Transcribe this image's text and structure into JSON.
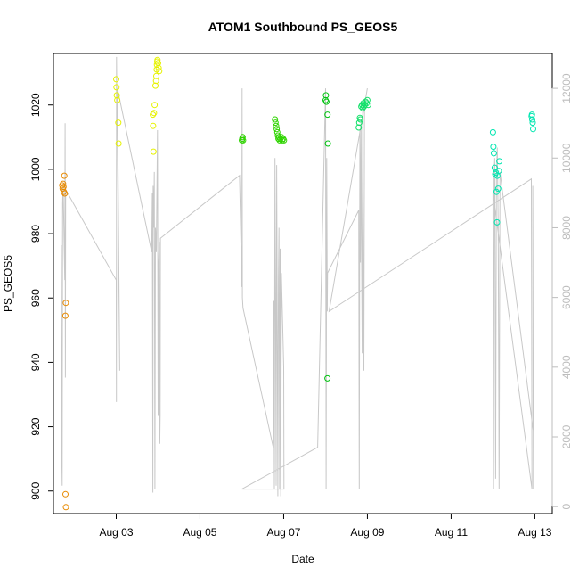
{
  "chart_data": {
    "type": "scatter",
    "title": "ATOM1 Southbound PS_GEOS5",
    "xlabel": "Date",
    "ylabel": "PS_GEOS5",
    "xlim": [
      "2016-08-01T12:00",
      "2016-08-13T10:00"
    ],
    "ylim": [
      893,
      1036
    ],
    "y2lim": [
      -200,
      13000
    ],
    "grid": false,
    "legend": "none",
    "x_ticks": [
      {
        "date": "2016-08-03",
        "label": "Aug 03"
      },
      {
        "date": "2016-08-05",
        "label": "Aug 05"
      },
      {
        "date": "2016-08-07",
        "label": "Aug 07"
      },
      {
        "date": "2016-08-09",
        "label": "Aug 09"
      },
      {
        "date": "2016-08-11",
        "label": "Aug 11"
      },
      {
        "date": "2016-08-13",
        "label": "Aug 13"
      }
    ],
    "y_ticks": [
      900,
      920,
      940,
      960,
      980,
      1000,
      1020
    ],
    "y2_ticks": [
      0,
      2000,
      4000,
      6000,
      8000,
      10000,
      12000
    ],
    "colors": {
      "flight1": "#e88a00",
      "flight2": "#e6f200",
      "flight3": "#2fd400",
      "flight4": "#00c410",
      "flight5": "#14e06a",
      "flight6": "#00e6b0",
      "altitude_line": "#c8c8c8",
      "frame": "#000000"
    },
    "series": [
      {
        "color_key": "flight1",
        "points": [
          [
            "2016-08-01T17:00",
            995
          ],
          [
            "2016-08-01T17:15",
            994
          ],
          [
            "2016-08-01T17:30",
            995.5
          ],
          [
            "2016-08-01T17:45",
            994.5
          ],
          [
            "2016-08-01T18:00",
            993
          ],
          [
            "2016-08-01T18:15",
            998
          ],
          [
            "2016-08-01T18:30",
            992.5
          ],
          [
            "2016-08-01T18:50",
            954.5
          ],
          [
            "2016-08-01T19:05",
            958.5
          ],
          [
            "2016-08-01T18:55",
            899
          ],
          [
            "2016-08-01T19:10",
            895
          ]
        ]
      },
      {
        "color_key": "flight2",
        "points": [
          [
            "2016-08-03T00:00",
            1028
          ],
          [
            "2016-08-03T00:10",
            1025.5
          ],
          [
            "2016-08-03T00:20",
            1023
          ],
          [
            "2016-08-03T00:35",
            1021.5
          ],
          [
            "2016-08-03T01:10",
            1014.5
          ],
          [
            "2016-08-03T01:20",
            1008
          ],
          [
            "2016-08-03T21:00",
            1017
          ],
          [
            "2016-08-03T21:10",
            1013.5
          ],
          [
            "2016-08-03T21:20",
            1005.5
          ],
          [
            "2016-08-03T21:40",
            1017.5
          ],
          [
            "2016-08-03T22:00",
            1020
          ],
          [
            "2016-08-03T22:30",
            1026
          ],
          [
            "2016-08-03T22:50",
            1027.5
          ],
          [
            "2016-08-03T23:00",
            1029
          ],
          [
            "2016-08-03T23:10",
            1031
          ],
          [
            "2016-08-03T23:20",
            1032.5
          ],
          [
            "2016-08-03T23:30",
            1033.5
          ],
          [
            "2016-08-03T23:40",
            1034
          ],
          [
            "2016-08-04T00:00",
            1033
          ],
          [
            "2016-08-04T00:20",
            1031.5
          ],
          [
            "2016-08-04T00:40",
            1030.5
          ]
        ]
      },
      {
        "color_key": "flight3",
        "points": [
          [
            "2016-08-06T00:00",
            1009
          ],
          [
            "2016-08-06T00:15",
            1009.5
          ],
          [
            "2016-08-06T00:30",
            1010
          ],
          [
            "2016-08-06T00:45",
            1009
          ],
          [
            "2016-08-06T19:00",
            1015.5
          ],
          [
            "2016-08-06T19:20",
            1014.5
          ],
          [
            "2016-08-06T19:40",
            1013.5
          ],
          [
            "2016-08-06T20:00",
            1012.5
          ],
          [
            "2016-08-06T20:20",
            1011.5
          ],
          [
            "2016-08-06T20:40",
            1010.5
          ],
          [
            "2016-08-06T21:00",
            1009.5
          ],
          [
            "2016-08-06T21:20",
            1010
          ],
          [
            "2016-08-06T21:40",
            1009
          ],
          [
            "2016-08-06T22:10",
            1009.5
          ],
          [
            "2016-08-06T22:40",
            1010
          ],
          [
            "2016-08-06T23:10",
            1009
          ],
          [
            "2016-08-06T23:40",
            1009.5
          ],
          [
            "2016-08-07T00:10",
            1009
          ]
        ]
      },
      {
        "color_key": "flight4",
        "points": [
          [
            "2016-08-08T00:00",
            1021.5
          ],
          [
            "2016-08-08T00:15",
            1023
          ],
          [
            "2016-08-08T00:30",
            1021
          ],
          [
            "2016-08-08T01:10",
            1017
          ],
          [
            "2016-08-08T01:20",
            1008
          ],
          [
            "2016-08-08T01:05",
            935
          ]
        ]
      },
      {
        "color_key": "flight5",
        "points": [
          [
            "2016-08-08T19:00",
            1013
          ],
          [
            "2016-08-08T19:20",
            1014.5
          ],
          [
            "2016-08-08T19:40",
            1016
          ],
          [
            "2016-08-08T20:00",
            1015.5
          ],
          [
            "2016-08-08T20:30",
            1019.5
          ],
          [
            "2016-08-08T21:00",
            1020
          ],
          [
            "2016-08-08T21:20",
            1019
          ],
          [
            "2016-08-08T21:40",
            1020.5
          ],
          [
            "2016-08-08T22:00",
            1019.5
          ],
          [
            "2016-08-08T22:30",
            1020
          ],
          [
            "2016-08-08T23:00",
            1021
          ],
          [
            "2016-08-08T23:30",
            1020.5
          ],
          [
            "2016-08-09T00:00",
            1021.5
          ],
          [
            "2016-08-09T00:30",
            1020
          ]
        ]
      },
      {
        "color_key": "flight6",
        "points": [
          [
            "2016-08-12T00:00",
            1011.5
          ],
          [
            "2016-08-12T00:15",
            1007
          ],
          [
            "2016-08-12T00:30",
            1005
          ],
          [
            "2016-08-12T01:00",
            1000.5
          ],
          [
            "2016-08-12T01:20",
            998.5
          ],
          [
            "2016-08-12T01:40",
            999
          ],
          [
            "2016-08-12T02:00",
            993
          ],
          [
            "2016-08-12T02:30",
            998
          ],
          [
            "2016-08-12T03:00",
            994
          ],
          [
            "2016-08-12T03:20",
            999.5
          ],
          [
            "2016-08-12T03:40",
            1002.5
          ],
          [
            "2016-08-12T02:20",
            983.5
          ],
          [
            "2016-08-12T22:10",
            1016.5
          ],
          [
            "2016-08-12T22:20",
            1017
          ],
          [
            "2016-08-12T22:30",
            1015.5
          ],
          [
            "2016-08-12T22:45",
            1014.5
          ],
          [
            "2016-08-12T23:00",
            1012.5
          ]
        ]
      }
    ],
    "altitude_line": [
      [
        "2016-08-01T16:30",
        7500
      ],
      [
        "2016-08-01T16:45",
        1500
      ],
      [
        "2016-08-01T17:00",
        600
      ],
      [
        "2016-08-01T17:15",
        8700
      ],
      [
        "2016-08-01T17:25",
        9000
      ],
      [
        "2016-08-01T17:35",
        9200
      ],
      [
        "2016-08-01T18:30",
        6500
      ],
      [
        "2016-08-01T18:40",
        11000
      ],
      [
        "2016-08-01T18:50",
        3700
      ],
      [
        "2016-08-01T19:00",
        9100
      ],
      [
        "2016-08-03T00:00",
        6500
      ],
      [
        "2016-08-03T00:05",
        3000
      ],
      [
        "2016-08-03T00:10",
        12900
      ],
      [
        "2016-08-03T00:20",
        11800
      ],
      [
        "2016-08-03T00:30",
        11500
      ],
      [
        "2016-08-03T02:00",
        3900
      ],
      [
        "2016-08-03T00:40",
        12000
      ],
      [
        "2016-08-03T20:20",
        7300
      ],
      [
        "2016-08-03T20:40",
        9000
      ],
      [
        "2016-08-03T21:00",
        400
      ],
      [
        "2016-08-03T21:10",
        9200
      ],
      [
        "2016-08-03T21:30",
        8000
      ],
      [
        "2016-08-03T21:50",
        9600
      ],
      [
        "2016-08-03T22:10",
        500
      ],
      [
        "2016-08-03T22:30",
        8000
      ],
      [
        "2016-08-03T23:00",
        7300
      ],
      [
        "2016-08-03T23:40",
        10800
      ],
      [
        "2016-08-04T00:00",
        2600
      ],
      [
        "2016-08-04T00:20",
        7000
      ],
      [
        "2016-08-04T00:40",
        7600
      ],
      [
        "2016-08-04T01:00",
        1800
      ],
      [
        "2016-08-04T01:10",
        2600
      ],
      [
        "2016-08-04T01:20",
        7700
      ],
      [
        "2016-08-05T22:40",
        9500
      ],
      [
        "2016-08-06T00:00",
        6300
      ],
      [
        "2016-08-06T00:10",
        12000
      ],
      [
        "2016-08-06T00:20",
        6000
      ],
      [
        "2016-08-06T00:40",
        5700
      ],
      [
        "2016-08-06T18:00",
        1700
      ],
      [
        "2016-08-06T18:20",
        5900
      ],
      [
        "2016-08-06T18:40",
        500
      ],
      [
        "2016-08-06T19:00",
        10000
      ],
      [
        "2016-08-06T19:20",
        6200
      ],
      [
        "2016-08-06T19:40",
        600
      ],
      [
        "2016-08-06T20:00",
        9800
      ],
      [
        "2016-08-06T20:20",
        4900
      ],
      [
        "2016-08-06T20:40",
        300
      ],
      [
        "2016-08-06T21:00",
        6500
      ],
      [
        "2016-08-06T21:20",
        8000
      ],
      [
        "2016-08-06T21:40",
        500
      ],
      [
        "2016-08-06T22:00",
        7400
      ],
      [
        "2016-08-06T22:20",
        300
      ],
      [
        "2016-08-06T22:40",
        6700
      ],
      [
        "2016-08-07T00:00",
        4000
      ],
      [
        "2016-08-07T00:10",
        500
      ],
      [
        "2016-08-06T00:00",
        500
      ],
      [
        "2016-08-07T19:30",
        1700
      ],
      [
        "2016-08-08T00:00",
        12000
      ],
      [
        "2016-08-08T00:20",
        500
      ],
      [
        "2016-08-08T00:40",
        10000
      ],
      [
        "2016-08-08T01:00",
        5600
      ],
      [
        "2016-08-08T01:10",
        6700
      ],
      [
        "2016-08-08T19:00",
        8500
      ],
      [
        "2016-08-08T19:20",
        500
      ],
      [
        "2016-08-08T19:40",
        10800
      ],
      [
        "2016-08-08T20:00",
        7000
      ],
      [
        "2016-08-08T20:20",
        11000
      ],
      [
        "2016-08-08T20:40",
        7500
      ],
      [
        "2016-08-08T21:00",
        4400
      ],
      [
        "2016-08-08T21:20",
        11500
      ],
      [
        "2016-08-08T21:40",
        6100
      ],
      [
        "2016-08-08T22:00",
        3900
      ],
      [
        "2016-08-08T22:20",
        11700
      ],
      [
        "2016-08-08T22:40",
        11600
      ],
      [
        "2016-08-09T00:00",
        12000
      ],
      [
        "2016-08-08T02:00",
        5600
      ],
      [
        "2016-08-12T22:00",
        9400
      ],
      [
        "2016-08-12T22:20",
        500
      ],
      [
        "2016-08-12T00:00",
        9000
      ],
      [
        "2016-08-12T00:20",
        500
      ],
      [
        "2016-08-12T00:40",
        9500
      ],
      [
        "2016-08-12T01:00",
        10000
      ],
      [
        "2016-08-12T01:30",
        800
      ],
      [
        "2016-08-12T02:00",
        9500
      ],
      [
        "2016-08-12T02:30",
        10300
      ],
      [
        "2016-08-12T03:00",
        8000
      ],
      [
        "2016-08-12T03:30",
        500
      ],
      [
        "2016-08-12T04:00",
        9600
      ],
      [
        "2016-08-12T23:00",
        2200
      ],
      [
        "2016-08-12T22:50",
        9200
      ],
      [
        "2016-08-12T23:10",
        500
      ]
    ]
  }
}
